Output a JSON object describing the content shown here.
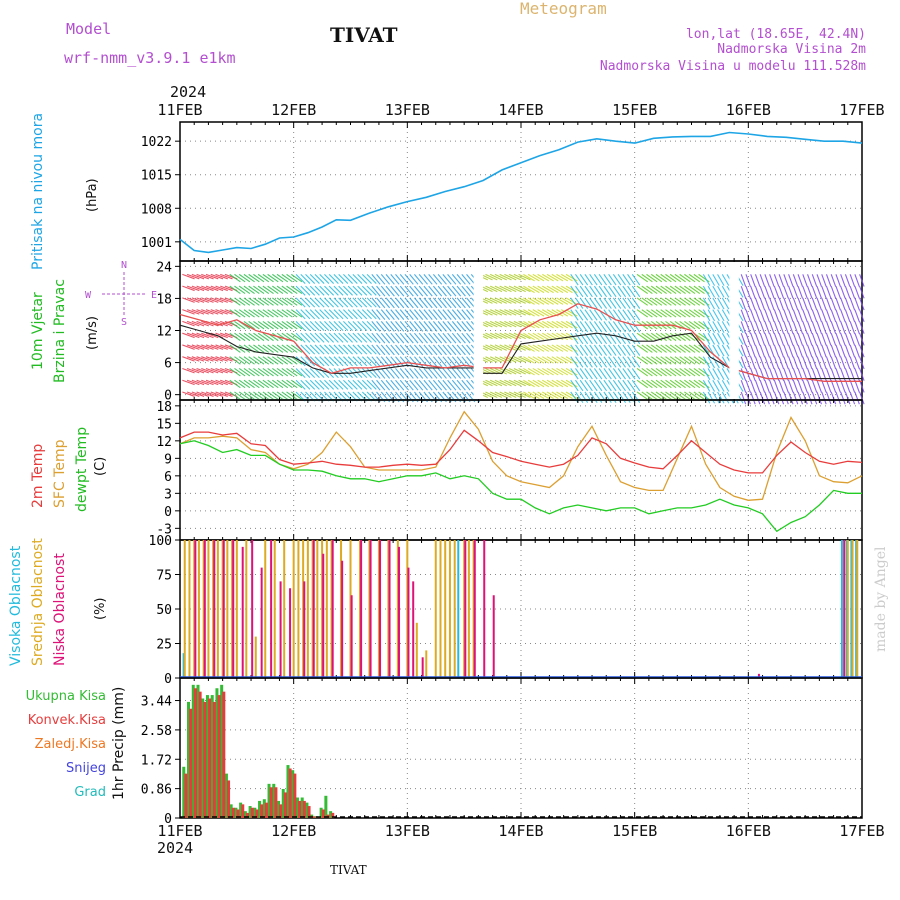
{
  "header": {
    "model_label": "Model",
    "model_name": "wrf-nmm_v3.9.1  e1km",
    "station": "TIVAT",
    "title": "Meteogram",
    "lonlat": "lon,lat (18.65E, 42.4N)",
    "elevation": "Nadmorska Visina 2m",
    "model_elevation": "Nadmorska Visina u modelu 111.528m",
    "year_top": "2024",
    "year_bottom": "2024",
    "footer_station": "TIVAT",
    "credit": "made by Angel"
  },
  "colors": {
    "pressure": "#1ea5e6",
    "temp2m": "#e83c3c",
    "sfc_temp": "#dca032",
    "dewpoint": "#22cc22",
    "high_cloud": "#22bbdd",
    "mid_cloud": "#ddaa22",
    "low_cloud": "#dd1177",
    "total_precip": "#33bb33",
    "conv_precip": "#e83c3c",
    "freezing": "#ee7722",
    "snow": "#4444dd",
    "hail": "#22bbbb",
    "title_orange": "#dcb46e",
    "purple": "#b34fd0"
  },
  "chart_data": [
    {
      "type": "line",
      "panel": "pressure",
      "ylabel": [
        "Pritisak na nivou mora",
        "(hPa)"
      ],
      "yticks": [
        1001,
        1008,
        1015,
        1022
      ],
      "ylim": [
        997,
        1026
      ],
      "xlabels": [
        "11FEB",
        "12FEB",
        "13FEB",
        "14FEB",
        "15FEB",
        "16FEB",
        "17FEB"
      ],
      "xlim": [
        0,
        144
      ],
      "grid": true,
      "series": [
        {
          "key": "pressure",
          "x": [
            0,
            3,
            6,
            9,
            12,
            15,
            18,
            21,
            24,
            27,
            30,
            33,
            36,
            40,
            44,
            48,
            52,
            56,
            60,
            64,
            68,
            72,
            76,
            80,
            84,
            88,
            92,
            96,
            100,
            104,
            108,
            112,
            116,
            120,
            124,
            128,
            132,
            136,
            140,
            144
          ],
          "values": [
            1001.5,
            999.2,
            998.8,
            999.3,
            999.8,
            999.6,
            1000.5,
            1001.8,
            1002.0,
            1002.9,
            1004.1,
            1005.6,
            1005.5,
            1007.0,
            1008.3,
            1009.4,
            1010.3,
            1011.5,
            1012.5,
            1013.8,
            1016.0,
            1017.5,
            1019.0,
            1020.2,
            1021.8,
            1022.5,
            1022.0,
            1021.6,
            1022.6,
            1022.9,
            1023.0,
            1023.0,
            1023.8,
            1023.5,
            1023.0,
            1022.8,
            1022.4,
            1022.0,
            1022.0,
            1021.6
          ]
        }
      ]
    },
    {
      "type": "line",
      "panel": "wind",
      "ylabel": [
        "10m Vjetar",
        "Brzina i Pravac",
        "(m/s)"
      ],
      "direction_legend": [
        "N",
        "W",
        "E",
        "S"
      ],
      "yticks": [
        0,
        6,
        12,
        18,
        24
      ],
      "ylim": [
        -1,
        25
      ],
      "xlim": [
        0,
        144
      ],
      "grid": true,
      "series": [
        {
          "key": "speed",
          "color": "#222222",
          "x": [
            0,
            4,
            8,
            12,
            16,
            20,
            24,
            28,
            32,
            36,
            40,
            44,
            48,
            52,
            56,
            60,
            62,
            64,
            66,
            68,
            72,
            76,
            80,
            84,
            88,
            92,
            96,
            100,
            104,
            108,
            112,
            116,
            120,
            124,
            128,
            132,
            136,
            140,
            144
          ],
          "values": [
            13,
            12,
            11,
            9,
            8,
            7.5,
            7,
            5,
            4,
            4,
            4.5,
            5,
            5.5,
            5,
            5,
            5,
            5,
            4,
            4,
            4,
            9.5,
            10,
            10.5,
            11,
            11.5,
            11,
            10,
            10,
            11,
            11.5,
            7,
            5,
            4,
            3,
            3,
            3,
            3,
            3,
            3
          ]
        },
        {
          "key": "gust",
          "color": "#e85050",
          "x": [
            0,
            4,
            8,
            12,
            16,
            20,
            24,
            28,
            32,
            36,
            40,
            44,
            48,
            52,
            56,
            60,
            64,
            68,
            72,
            76,
            80,
            84,
            88,
            92,
            96,
            100,
            104,
            108,
            112,
            116,
            120,
            124,
            128,
            132,
            136,
            140,
            144
          ],
          "values": [
            15,
            14,
            13,
            14,
            12,
            11,
            10,
            6,
            4,
            5,
            5,
            5.5,
            6,
            5.5,
            5,
            5.5,
            5,
            5,
            12,
            14,
            15,
            17,
            16,
            14,
            13,
            13,
            13,
            12,
            8,
            5,
            4,
            3,
            3,
            3,
            2.5,
            2.5,
            2.5
          ]
        }
      ]
    },
    {
      "type": "line",
      "panel": "temperature",
      "ylabel": [
        "2m Temp",
        "SFC Temp",
        "dewpt Temp",
        "(C)"
      ],
      "yticks": [
        -3,
        0,
        3,
        6,
        9,
        12,
        15,
        18
      ],
      "ylim": [
        -5,
        19
      ],
      "xlim": [
        0,
        144
      ],
      "grid": true,
      "series": [
        {
          "key": "temp2m",
          "x": [
            0,
            3,
            6,
            9,
            12,
            15,
            18,
            21,
            24,
            27,
            30,
            33,
            36,
            39,
            42,
            45,
            48,
            51,
            54,
            57,
            60,
            63,
            66,
            69,
            72,
            75,
            78,
            81,
            84,
            87,
            90,
            93,
            96,
            99,
            102,
            105,
            108,
            111,
            114,
            117,
            120,
            123,
            126,
            129,
            132,
            135,
            138,
            141,
            144
          ],
          "values": [
            12.5,
            13.5,
            13.5,
            13.0,
            13.3,
            11.5,
            11.2,
            8.8,
            8.0,
            8.2,
            8.5,
            8.0,
            7.8,
            7.5,
            7.5,
            7.8,
            8.0,
            7.8,
            8.0,
            10.5,
            13.8,
            12.0,
            10.0,
            9.3,
            8.5,
            8.0,
            7.5,
            8.0,
            9.5,
            12.5,
            11.5,
            9.0,
            8.2,
            7.5,
            7.2,
            9.5,
            12.0,
            10.0,
            8.0,
            7.0,
            6.5,
            6.5,
            9.5,
            11.8,
            10.0,
            8.5,
            8.0,
            8.5,
            8.3
          ]
        },
        {
          "key": "sfc_temp",
          "x": [
            0,
            3,
            6,
            9,
            12,
            15,
            18,
            21,
            24,
            27,
            30,
            33,
            36,
            39,
            42,
            45,
            48,
            51,
            54,
            57,
            60,
            63,
            66,
            69,
            72,
            75,
            78,
            81,
            84,
            87,
            90,
            93,
            96,
            99,
            102,
            105,
            108,
            111,
            114,
            117,
            120,
            123,
            126,
            129,
            132,
            135,
            138,
            141,
            144
          ],
          "values": [
            11.5,
            12.5,
            12.5,
            12.8,
            12.5,
            10.5,
            10.0,
            8.0,
            7.2,
            8.0,
            10.0,
            13.5,
            11.0,
            7.5,
            7.0,
            7.0,
            7.0,
            7.0,
            7.5,
            12.5,
            17.0,
            14.0,
            8.5,
            6.0,
            5.0,
            4.5,
            4.0,
            6.0,
            11.0,
            14.5,
            9.5,
            5.0,
            4.0,
            3.5,
            3.5,
            9.0,
            14.5,
            8.0,
            4.0,
            2.5,
            1.8,
            2.0,
            10.0,
            16.0,
            12.0,
            6.0,
            5.0,
            4.8,
            6.0
          ]
        },
        {
          "key": "dewpoint",
          "x": [
            0,
            3,
            6,
            9,
            12,
            15,
            18,
            21,
            24,
            27,
            30,
            33,
            36,
            39,
            42,
            45,
            48,
            51,
            54,
            57,
            60,
            63,
            66,
            69,
            72,
            75,
            78,
            81,
            84,
            87,
            90,
            93,
            96,
            99,
            102,
            105,
            108,
            111,
            114,
            117,
            120,
            123,
            126,
            129,
            132,
            135,
            138,
            141,
            144
          ],
          "values": [
            11.5,
            12.0,
            11.2,
            10.0,
            10.5,
            9.5,
            9.5,
            8.0,
            7.0,
            7.0,
            6.8,
            6.0,
            5.5,
            5.5,
            5.0,
            5.5,
            6.0,
            6.0,
            6.5,
            5.5,
            6.0,
            5.5,
            3.0,
            2.0,
            2.0,
            0.5,
            -0.5,
            0.5,
            1.0,
            0.5,
            0.0,
            0.5,
            0.5,
            -0.5,
            0.0,
            0.5,
            0.5,
            1.0,
            2.0,
            1.0,
            0.5,
            -0.5,
            -3.5,
            -2.0,
            -1.0,
            1.0,
            3.5,
            3.0,
            3.0
          ]
        }
      ]
    },
    {
      "type": "bar",
      "panel": "cloud",
      "ylabel": [
        "Visoka Oblacnost",
        "Srednja Oblacnost",
        "Niska Oblacnost",
        "(%)"
      ],
      "yticks": [
        0,
        25,
        50,
        75,
        100
      ],
      "ylim": [
        0,
        100
      ],
      "xlim": [
        0,
        144
      ],
      "grid": true,
      "series": [
        {
          "key": "high_cloud",
          "x": [
            1,
            59,
            140,
            141,
            142,
            143
          ],
          "values": [
            18,
            100,
            100,
            100,
            100,
            100
          ]
        },
        {
          "key": "mid_cloud",
          "x": [
            1,
            2,
            3,
            4,
            5,
            6,
            7,
            8,
            9,
            10,
            11,
            12,
            14,
            16,
            18,
            20,
            22,
            24,
            25,
            26,
            27,
            28,
            29,
            30,
            31,
            32,
            34,
            36,
            38,
            40,
            42,
            44,
            46,
            48,
            50,
            52,
            54,
            55,
            56,
            57,
            58,
            60,
            61,
            62,
            141,
            142,
            143
          ],
          "values": [
            100,
            100,
            100,
            100,
            100,
            100,
            100,
            100,
            100,
            100,
            100,
            100,
            100,
            30,
            100,
            100,
            100,
            100,
            100,
            100,
            100,
            100,
            100,
            100,
            100,
            100,
            100,
            100,
            100,
            100,
            100,
            100,
            100,
            100,
            40,
            20,
            100,
            100,
            100,
            100,
            100,
            100,
            100,
            100,
            100,
            100,
            100
          ]
        },
        {
          "key": "low_cloud",
          "x": [
            3,
            5,
            7,
            9,
            11,
            13,
            15,
            17,
            19,
            21,
            23,
            26,
            28,
            30,
            32,
            34,
            36,
            38,
            40,
            42,
            44,
            46,
            48,
            49,
            51,
            60,
            62,
            64,
            66,
            122,
            140
          ],
          "values": [
            100,
            100,
            100,
            100,
            100,
            95,
            100,
            80,
            100,
            70,
            65,
            70,
            100,
            90,
            100,
            85,
            60,
            100,
            100,
            100,
            100,
            95,
            80,
            70,
            15,
            100,
            100,
            100,
            60,
            3,
            100
          ]
        }
      ]
    },
    {
      "type": "bar",
      "panel": "precip",
      "ylabel": [
        "1hr Precip (mm)"
      ],
      "legend": [
        "Ukupna Kisa",
        "Konvek.Kisa",
        "Zaledj.Kisa",
        "Snijeg",
        "Grad"
      ],
      "yticks": [
        0,
        0.86,
        1.72,
        2.58,
        3.44
      ],
      "ylim": [
        0,
        4.1
      ],
      "xlim": [
        0,
        144
      ],
      "grid": true,
      "series": [
        {
          "key": "total_precip",
          "x": [
            1,
            2,
            3,
            4,
            5,
            6,
            7,
            8,
            9,
            10,
            11,
            12,
            13,
            14,
            15,
            16,
            17,
            18,
            19,
            20,
            21,
            22,
            23,
            24,
            25,
            26,
            27,
            28,
            29,
            30,
            31,
            32
          ],
          "values": [
            1.5,
            3.4,
            3.9,
            3.9,
            3.5,
            3.6,
            3.6,
            3.8,
            3.9,
            1.3,
            0.4,
            0.3,
            0.45,
            0.2,
            0.35,
            0.3,
            0.5,
            0.55,
            1.0,
            1.0,
            0.5,
            0.85,
            1.55,
            1.4,
            0.6,
            0.6,
            0.45,
            0.1,
            0.05,
            0.3,
            0.65,
            0.2
          ]
        },
        {
          "key": "conv_precip",
          "x": [
            1,
            2,
            3,
            4,
            5,
            6,
            7,
            8,
            9,
            10,
            11,
            12,
            13,
            14,
            15,
            16,
            17,
            18,
            19,
            20,
            21,
            22,
            23,
            24,
            25,
            26,
            27,
            28,
            29,
            30,
            31,
            32
          ],
          "values": [
            1.3,
            3.2,
            3.8,
            3.7,
            3.4,
            3.5,
            3.4,
            3.6,
            3.7,
            1.1,
            0.3,
            0.25,
            0.4,
            0.15,
            0.3,
            0.25,
            0.4,
            0.45,
            0.9,
            0.9,
            0.4,
            0.75,
            1.45,
            1.3,
            0.5,
            0.5,
            0.35,
            0.05,
            0.03,
            0.25,
            0.1,
            0.15
          ]
        }
      ]
    }
  ]
}
